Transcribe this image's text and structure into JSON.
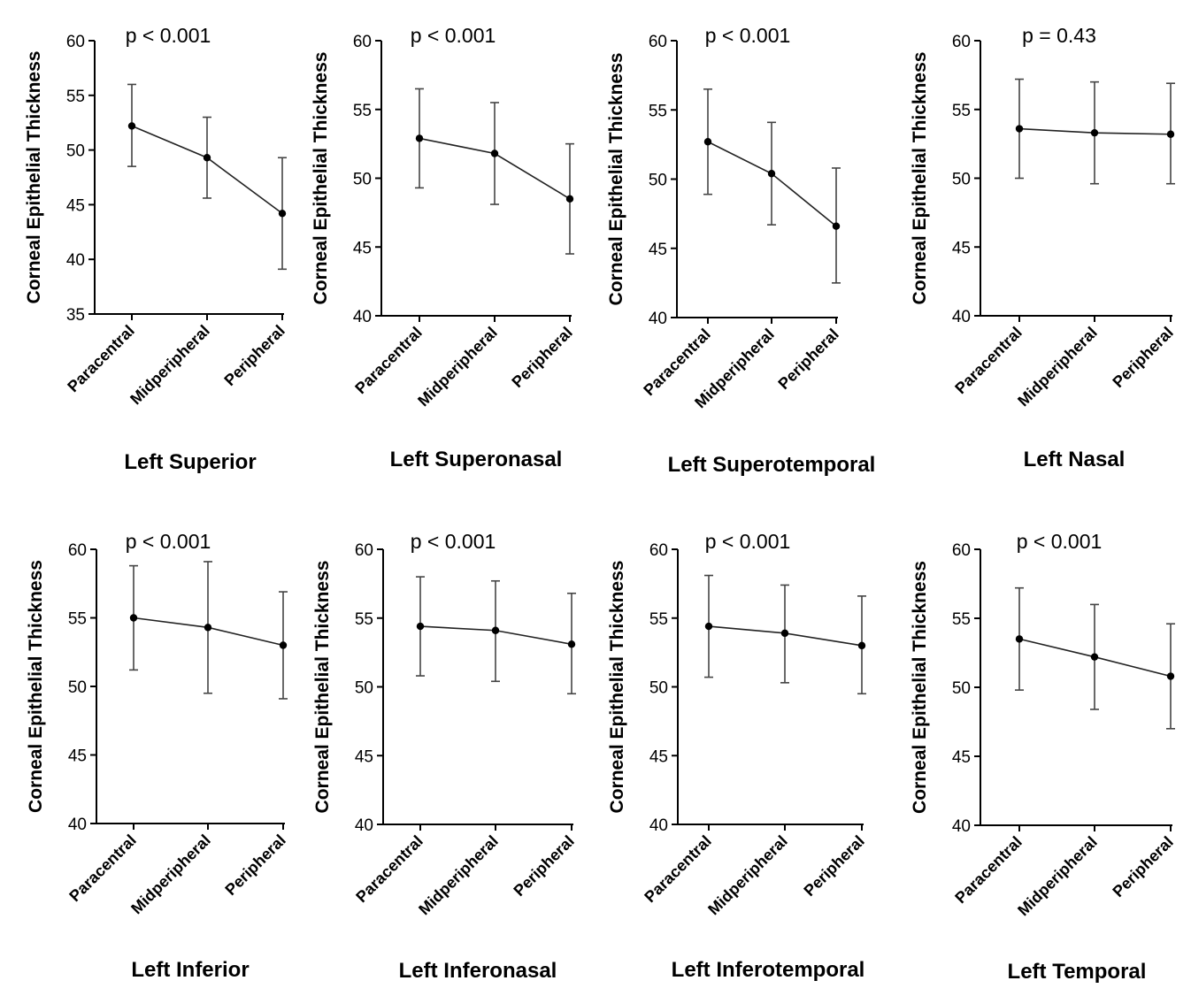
{
  "chart_data": [
    {
      "type": "line",
      "title": "Left Superior",
      "annotation": "p < 0.001",
      "ylabel": "Corneal Epithelial Thickness",
      "categories": [
        "Paracentral",
        "Midperipheral",
        "Peripheral"
      ],
      "ylim": [
        35,
        60
      ],
      "yticks": [
        35,
        40,
        45,
        50,
        55,
        60
      ],
      "values": [
        52.2,
        49.3,
        44.2
      ],
      "error_low": [
        48.5,
        45.6,
        39.1
      ],
      "error_high": [
        56.0,
        53.0,
        49.3
      ]
    },
    {
      "type": "line",
      "title": "Left Superonasal",
      "annotation": "p < 0.001",
      "ylabel": "Corneal Epithelial Thickness",
      "categories": [
        "Paracentral",
        "Midperipheral",
        "Peripheral"
      ],
      "ylim": [
        40,
        60
      ],
      "yticks": [
        40,
        45,
        50,
        55,
        60
      ],
      "values": [
        52.9,
        51.8,
        48.5
      ],
      "error_low": [
        49.3,
        48.1,
        44.5
      ],
      "error_high": [
        56.5,
        55.5,
        52.5
      ]
    },
    {
      "type": "line",
      "title": "Left Superotemporal",
      "annotation": "p < 0.001",
      "ylabel": "Corneal Epithelial Thickness",
      "categories": [
        "Paracentral",
        "Midperipheral",
        "Peripheral"
      ],
      "ylim": [
        40,
        60
      ],
      "yticks": [
        40,
        45,
        50,
        55,
        60
      ],
      "values": [
        52.7,
        50.4,
        46.6
      ],
      "error_low": [
        48.9,
        46.7,
        42.5
      ],
      "error_high": [
        56.5,
        54.1,
        50.8
      ]
    },
    {
      "type": "line",
      "title": "Left Nasal",
      "annotation": "p = 0.43",
      "ylabel": "Corneal Epithelial Thickness",
      "categories": [
        "Paracentral",
        "Midperipheral",
        "Peripheral"
      ],
      "ylim": [
        40,
        60
      ],
      "yticks": [
        40,
        45,
        50,
        55,
        60
      ],
      "values": [
        53.6,
        53.3,
        53.2
      ],
      "error_low": [
        50.0,
        49.6,
        49.6
      ],
      "error_high": [
        57.2,
        57.0,
        56.9
      ]
    },
    {
      "type": "line",
      "title": "Left Inferior",
      "annotation": "p < 0.001",
      "ylabel": "Corneal Epithelial Thickness",
      "categories": [
        "Paracentral",
        "Midperipheral",
        "Peripheral"
      ],
      "ylim": [
        40,
        60
      ],
      "yticks": [
        40,
        45,
        50,
        55,
        60
      ],
      "values": [
        55.0,
        54.3,
        53.0
      ],
      "error_low": [
        51.2,
        49.5,
        49.1
      ],
      "error_high": [
        58.8,
        59.1,
        56.9
      ]
    },
    {
      "type": "line",
      "title": "Left Inferonasal",
      "annotation": "p < 0.001",
      "ylabel": "Corneal Epithelial Thickness",
      "categories": [
        "Paracentral",
        "Midperipheral",
        "Peripheral"
      ],
      "ylim": [
        40,
        60
      ],
      "yticks": [
        40,
        45,
        50,
        55,
        60
      ],
      "values": [
        54.4,
        54.1,
        53.1
      ],
      "error_low": [
        50.8,
        50.4,
        49.5
      ],
      "error_high": [
        58.0,
        57.7,
        56.8
      ]
    },
    {
      "type": "line",
      "title": "Left Inferotemporal",
      "annotation": "p < 0.001",
      "ylabel": "Corneal Epithelial Thickness",
      "categories": [
        "Paracentral",
        "Midperipheral",
        "Peripheral"
      ],
      "ylim": [
        40,
        60
      ],
      "yticks": [
        40,
        45,
        50,
        55,
        60
      ],
      "values": [
        54.4,
        53.9,
        53.0
      ],
      "error_low": [
        50.7,
        50.3,
        49.5
      ],
      "error_high": [
        58.1,
        57.4,
        56.6
      ]
    },
    {
      "type": "line",
      "title": "Left Temporal",
      "annotation": "p < 0.001",
      "ylabel": "Corneal Epithelial Thickness",
      "categories": [
        "Paracentral",
        "Midperipheral",
        "Peripheral"
      ],
      "ylim": [
        40,
        60
      ],
      "yticks": [
        40,
        45,
        50,
        55,
        60
      ],
      "values": [
        53.5,
        52.2,
        50.8
      ],
      "error_low": [
        49.8,
        48.4,
        47.0
      ],
      "error_high": [
        57.2,
        56.0,
        54.6
      ]
    }
  ]
}
